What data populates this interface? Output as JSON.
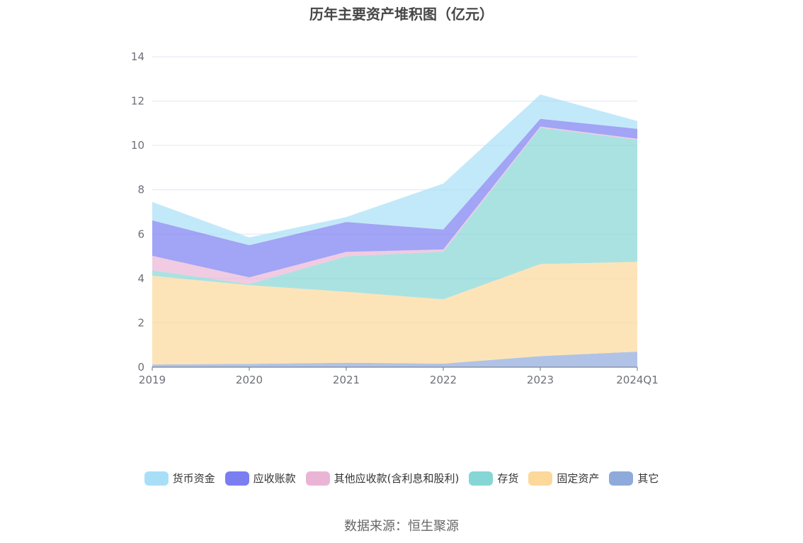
{
  "chart_data": {
    "type": "area",
    "stacked": true,
    "title": "历年主要资产堆积图（亿元）",
    "categories": [
      "2019",
      "2020",
      "2021",
      "2022",
      "2023",
      "2024Q1"
    ],
    "ylim": [
      0,
      14
    ],
    "yticks": [
      0,
      2,
      4,
      6,
      8,
      10,
      12,
      14
    ],
    "grid": true,
    "legend_position": "bottom",
    "series": [
      {
        "name": "其它",
        "color": "#8eaadb",
        "values": [
          0.12,
          0.15,
          0.2,
          0.16,
          0.5,
          0.7
        ]
      },
      {
        "name": "固定资产",
        "color": "#fcd89a",
        "values": [
          4.0,
          3.55,
          3.2,
          2.9,
          4.15,
          4.05
        ]
      },
      {
        "name": "存货",
        "color": "#86d6d6",
        "values": [
          0.25,
          0.05,
          1.6,
          2.15,
          6.15,
          5.5
        ]
      },
      {
        "name": "其他应收款(含利息和股利)",
        "color": "#eab5d5",
        "values": [
          0.65,
          0.3,
          0.2,
          0.1,
          0.05,
          0.05
        ]
      },
      {
        "name": "应收账款",
        "color": "#7b7ef1",
        "values": [
          1.6,
          1.45,
          1.35,
          0.9,
          0.35,
          0.45
        ]
      },
      {
        "name": "货币资金",
        "color": "#a8dff7",
        "values": [
          0.83,
          0.35,
          0.22,
          2.07,
          1.1,
          0.35
        ]
      }
    ]
  },
  "legend_order": [
    "货币资金",
    "应收账款",
    "其他应收款(含利息和股利)",
    "存货",
    "固定资产",
    "其它"
  ],
  "source_text": "数据来源：恒生聚源"
}
